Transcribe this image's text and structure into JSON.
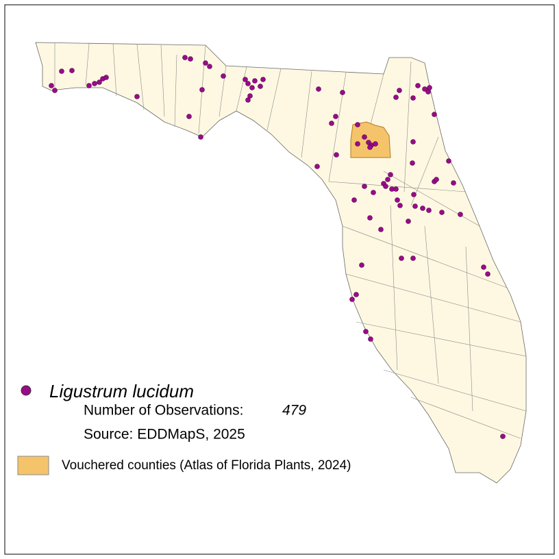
{
  "legend": {
    "species": "Ligustrum lucidum",
    "observations_label": "Number of Observations:",
    "observations": 479,
    "source": "Source: EDDMapS, 2025",
    "vouchered": "Vouchered counties (Atlas of Florida Plants, 2024)"
  }
}
